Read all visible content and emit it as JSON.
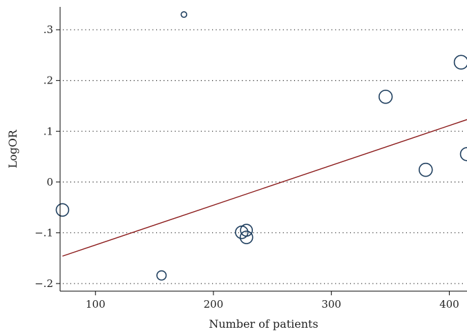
{
  "chart_data": {
    "type": "scatter",
    "title": "",
    "xlabel": "Number of patients",
    "ylabel": "LogOR",
    "xlim": [
      70,
      415
    ],
    "ylim": [
      -0.215,
      0.345
    ],
    "xticks": [
      100,
      200,
      300,
      400
    ],
    "xtick_labels": [
      "100",
      "200",
      "300",
      "400"
    ],
    "yticks": [
      -0.2,
      -0.1,
      0,
      0.1,
      0.2,
      0.3
    ],
    "ytick_labels": [
      "−.2",
      "−.1",
      "0",
      ".1",
      ".2",
      ".3"
    ],
    "grid": "horizontal dotted",
    "points": [
      {
        "x": 72,
        "y": -0.055,
        "weight": 1.0
      },
      {
        "x": 156,
        "y": -0.184,
        "weight": 0.55
      },
      {
        "x": 175,
        "y": 0.33,
        "weight": 0.2
      },
      {
        "x": 224,
        "y": -0.099,
        "weight": 1.0
      },
      {
        "x": 228,
        "y": -0.095,
        "weight": 0.9
      },
      {
        "x": 228,
        "y": -0.109,
        "weight": 1.0
      },
      {
        "x": 346,
        "y": 0.168,
        "weight": 1.1
      },
      {
        "x": 380,
        "y": 0.024,
        "weight": 1.1
      },
      {
        "x": 410,
        "y": 0.236,
        "weight": 1.2
      },
      {
        "x": 415,
        "y": 0.055,
        "weight": 1.1
      }
    ],
    "fit_line": {
      "x": [
        72,
        415
      ],
      "y": [
        -0.146,
        0.123
      ]
    },
    "colors": {
      "points": "#1f3f5f",
      "fit_line": "#8b1a1a"
    }
  }
}
